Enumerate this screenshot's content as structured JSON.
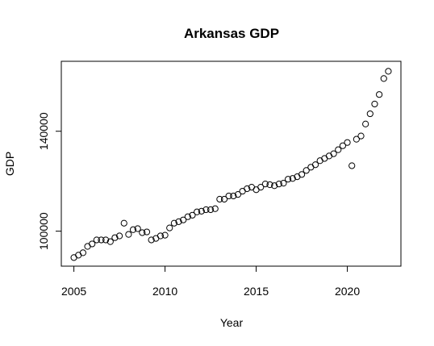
{
  "chart_data": {
    "type": "scatter",
    "title": "Arkansas GDP",
    "x_label": "Year",
    "y_label": "GDP",
    "x": [
      2005,
      2005.25,
      2005.5,
      2005.75,
      2006,
      2006.25,
      2006.5,
      2006.75,
      2007,
      2007.25,
      2007.5,
      2007.75,
      2008,
      2008.25,
      2008.5,
      2008.75,
      2009,
      2009.25,
      2009.5,
      2009.75,
      2010,
      2010.25,
      2010.5,
      2010.75,
      2011,
      2011.25,
      2011.5,
      2011.75,
      2012,
      2012.25,
      2012.5,
      2012.75,
      2013,
      2013.25,
      2013.5,
      2013.75,
      2014,
      2014.25,
      2014.5,
      2014.75,
      2015,
      2015.25,
      2015.5,
      2015.75,
      2016,
      2016.25,
      2016.5,
      2016.75,
      2017,
      2017.25,
      2017.5,
      2017.75,
      2018,
      2018.25,
      2018.5,
      2018.75,
      2019,
      2019.25,
      2019.5,
      2019.75,
      2020,
      2020.25,
      2020.5,
      2020.75,
      2021,
      2021.25,
      2021.5,
      2021.75,
      2022,
      2022.25
    ],
    "values": [
      89440,
      90400,
      91360,
      93900,
      94900,
      96500,
      96500,
      96500,
      95800,
      97400,
      98100,
      103200,
      98700,
      100600,
      101000,
      99400,
      99700,
      96500,
      97100,
      98100,
      98400,
      101300,
      103200,
      103800,
      104500,
      105800,
      106400,
      107700,
      108000,
      108600,
      108600,
      109000,
      112800,
      112800,
      114100,
      114100,
      114700,
      116000,
      117000,
      117600,
      116600,
      117600,
      118900,
      118600,
      118200,
      118900,
      119200,
      120800,
      121100,
      121800,
      122700,
      124300,
      125600,
      126600,
      128200,
      129100,
      130100,
      131000,
      132600,
      134200,
      135500,
      126200,
      136800,
      138100,
      142900,
      147000,
      150900,
      154700,
      161100,
      164000
    ],
    "color": "#000000",
    "xlim": [
      2004.31,
      2022.94
    ],
    "xticks": [
      2005,
      2010,
      2015,
      2020
    ],
    "ylim": [
      86000,
      168000
    ],
    "yticks": [
      100000,
      140000
    ]
  }
}
